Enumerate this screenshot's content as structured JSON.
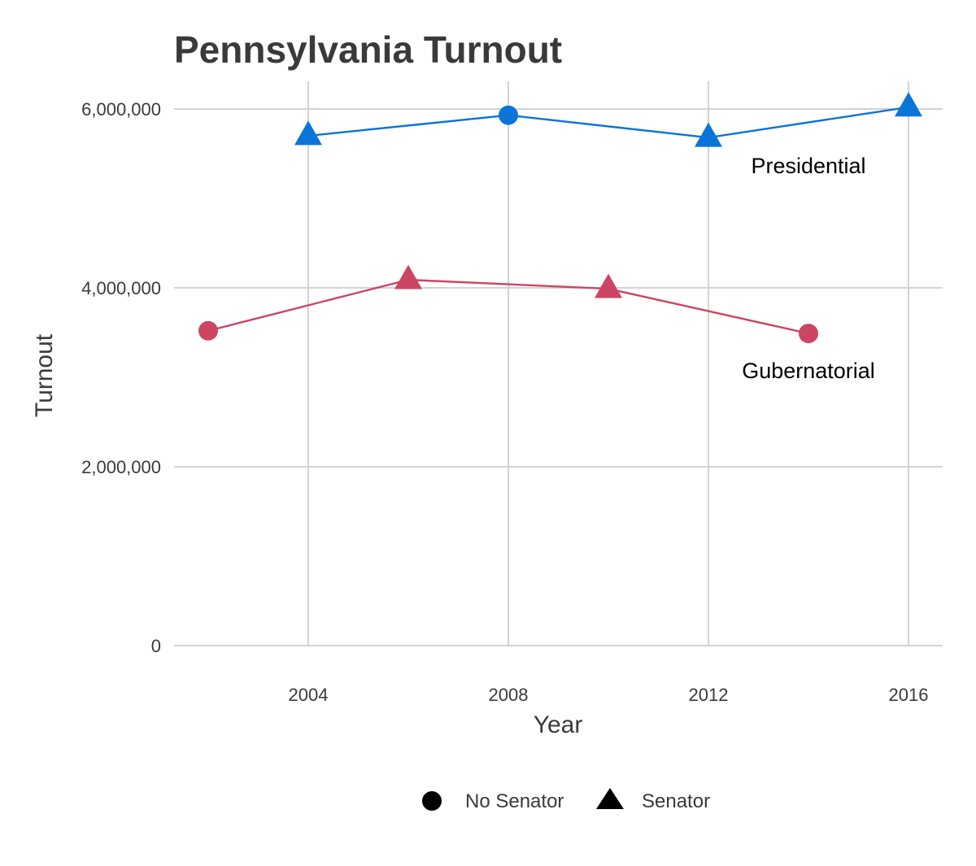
{
  "chart_data": {
    "type": "line",
    "title": "Pennsylvania Turnout",
    "xlabel": "Year",
    "ylabel": "Turnout",
    "xlim": [
      2001.0,
      2016.0
    ],
    "ylim": [
      0,
      6000000
    ],
    "x_ticks": [
      2004,
      2008,
      2012,
      2016
    ],
    "x_tick_labels": [
      "2004",
      "2008",
      "2012",
      "2016"
    ],
    "y_ticks": [
      0,
      2000000,
      4000000,
      6000000
    ],
    "y_tick_labels": [
      "0",
      "2,000,000",
      "4,000,000",
      "6,000,000"
    ],
    "grid": true,
    "series": [
      {
        "name": "Presidential",
        "color": "#0b74d9",
        "label_anchor": {
          "x": 2014,
          "y": 5280000
        },
        "points": [
          {
            "x": 2004,
            "y": 5700000,
            "shape": "triangle"
          },
          {
            "x": 2008,
            "y": 5930000,
            "shape": "circle"
          },
          {
            "x": 2012,
            "y": 5680000,
            "shape": "triangle"
          },
          {
            "x": 2016,
            "y": 6020000,
            "shape": "triangle"
          }
        ]
      },
      {
        "name": "Gubernatorial",
        "color": "#cc4563",
        "label_anchor": {
          "x": 2014,
          "y": 2990000
        },
        "points": [
          {
            "x": 2002,
            "y": 3520000,
            "shape": "circle"
          },
          {
            "x": 2006,
            "y": 4090000,
            "shape": "triangle"
          },
          {
            "x": 2010,
            "y": 3990000,
            "shape": "triangle"
          },
          {
            "x": 2014,
            "y": 3490000,
            "shape": "circle"
          }
        ]
      }
    ],
    "legend": {
      "position": "bottom",
      "items": [
        {
          "label": "No Senator",
          "shape": "circle"
        },
        {
          "label": "Senator",
          "shape": "triangle"
        }
      ]
    }
  }
}
